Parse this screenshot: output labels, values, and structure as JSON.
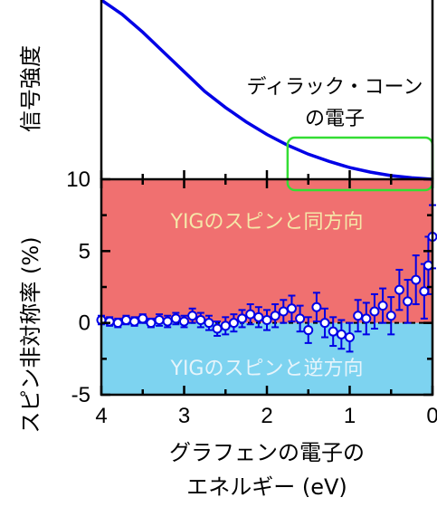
{
  "chart_data": [
    {
      "type": "line",
      "ylabel": "信号強度",
      "annotation": "ディラック・コーン\nの電子",
      "series": [
        {
          "color": "#0000e6",
          "x": [
            4.0,
            3.75,
            3.5,
            3.25,
            3.0,
            2.75,
            2.5,
            2.25,
            2.0,
            1.75,
            1.5,
            1.25,
            1.0,
            0.75,
            0.5,
            0.25,
            0.0
          ],
          "y": [
            1.0,
            0.92,
            0.82,
            0.71,
            0.6,
            0.49,
            0.4,
            0.32,
            0.25,
            0.19,
            0.14,
            0.1,
            0.065,
            0.04,
            0.02,
            0.008,
            0.0
          ]
        }
      ],
      "highlight_box_color": "#33dd33"
    },
    {
      "type": "scatter",
      "xlabel": "グラフェンの電子の\nエネルギー (eV)",
      "ylabel": "スピン非対称率 (%)",
      "xlim": [
        4,
        0
      ],
      "ylim": [
        -5,
        10
      ],
      "xticks": [
        "4",
        "3",
        "2",
        "1",
        "0"
      ],
      "yticks": [
        "10",
        "5",
        "0",
        "-5"
      ],
      "regions": [
        {
          "label": "YIGのスピンと同方向",
          "from": 0,
          "to": 10,
          "color": "#f07070"
        },
        {
          "label": "YIGのスピンと逆方向",
          "from": -5,
          "to": 0,
          "color": "#7dd3f0"
        }
      ],
      "series": [
        {
          "color": "#0000e6",
          "x": [
            4.0,
            3.9,
            3.8,
            3.7,
            3.6,
            3.5,
            3.4,
            3.3,
            3.2,
            3.1,
            3.0,
            2.9,
            2.8,
            2.7,
            2.6,
            2.5,
            2.4,
            2.3,
            2.2,
            2.1,
            2.0,
            1.9,
            1.8,
            1.7,
            1.6,
            1.5,
            1.4,
            1.3,
            1.2,
            1.1,
            1.0,
            0.9,
            0.8,
            0.7,
            0.6,
            0.5,
            0.4,
            0.3,
            0.2,
            0.1,
            0.05,
            0.0
          ],
          "y": [
            0.2,
            0.1,
            0.0,
            0.2,
            0.1,
            0.3,
            0.0,
            0.2,
            0.1,
            0.3,
            0.1,
            0.5,
            0.2,
            0.0,
            -0.4,
            -0.2,
            0.0,
            0.3,
            0.6,
            0.4,
            0.2,
            0.5,
            0.8,
            1.0,
            0.3,
            -0.5,
            1.1,
            0.0,
            -0.6,
            -0.8,
            -1.0,
            0.5,
            0.3,
            0.8,
            1.2,
            0.5,
            2.3,
            1.5,
            3.0,
            2.2,
            4.0,
            6.0
          ],
          "err": [
            0.3,
            0.3,
            0.3,
            0.3,
            0.3,
            0.3,
            0.3,
            0.4,
            0.4,
            0.4,
            0.4,
            0.5,
            0.5,
            0.5,
            0.5,
            0.6,
            0.6,
            0.6,
            0.7,
            0.7,
            0.7,
            0.8,
            0.8,
            0.9,
            0.9,
            0.9,
            1.0,
            1.0,
            1.0,
            1.0,
            1.0,
            1.1,
            1.1,
            1.2,
            1.2,
            1.3,
            1.4,
            1.5,
            1.7,
            1.9,
            2.0,
            2.2
          ]
        }
      ],
      "zero_line": "dashed"
    }
  ]
}
